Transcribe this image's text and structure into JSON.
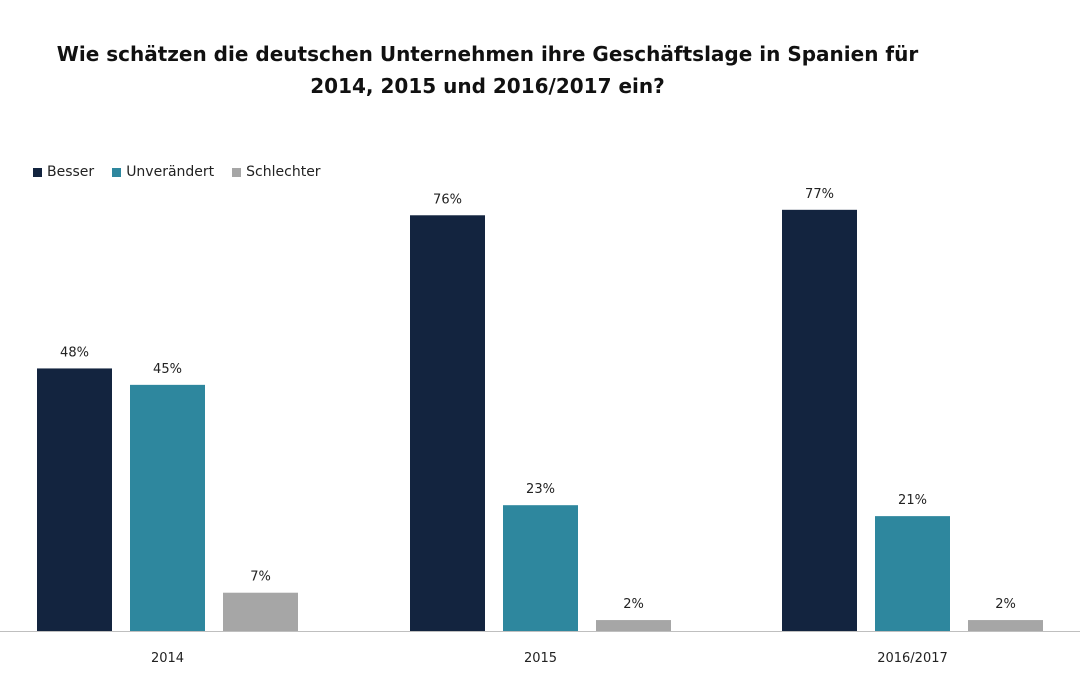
{
  "chart_data": {
    "type": "bar",
    "title": "Wie schätzen die deutschen Unternehmen ihre Geschäftslage in Spanien für 2014, 2015 und 2016/2017 ein?",
    "title_lines": [
      "Wie schätzen die deutschen Unternehmen ihre Geschäftslage in Spanien für",
      "2014, 2015 und 2016/2017 ein?"
    ],
    "categories": [
      "2014",
      "2015",
      "2016/2017"
    ],
    "series": [
      {
        "name": "Besser",
        "color": "#13243f",
        "values": [
          48,
          76,
          77
        ],
        "labels": [
          "48%",
          "76%",
          "77%"
        ]
      },
      {
        "name": "Unverändert",
        "color": "#2e879e",
        "values": [
          45,
          23,
          21
        ],
        "labels": [
          "45%",
          "23%",
          "21%"
        ]
      },
      {
        "name": "Schlechter",
        "color": "#a6a6a6",
        "values": [
          7,
          2,
          2
        ],
        "labels": [
          "7%",
          "2%",
          "2%"
        ]
      }
    ],
    "ylim": [
      0,
      100
    ],
    "grid": false,
    "legend_position": "top-left",
    "xlabel": "",
    "ylabel": ""
  }
}
